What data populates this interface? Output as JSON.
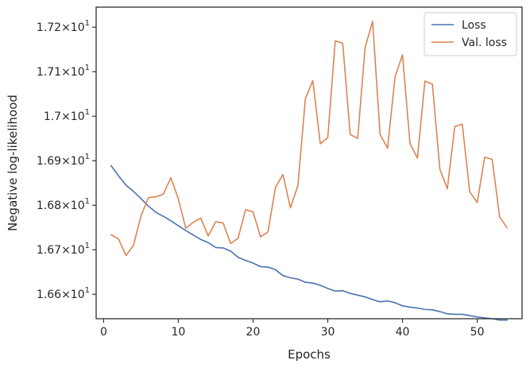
{
  "chart_data": {
    "type": "line",
    "xlabel": "Epochs",
    "ylabel": "Negative log-likelihood",
    "xlim": [
      -1,
      56
    ],
    "ylim": [
      16.545,
      17.245
    ],
    "x_ticks": [
      {
        "value": 0,
        "label": "0"
      },
      {
        "value": 10,
        "label": "10"
      },
      {
        "value": 20,
        "label": "20"
      },
      {
        "value": 30,
        "label": "30"
      },
      {
        "value": 40,
        "label": "40"
      },
      {
        "value": 50,
        "label": "50"
      }
    ],
    "y_ticks": [
      {
        "value": 16.6,
        "mant": "1.66",
        "exp": "1"
      },
      {
        "value": 16.7,
        "mant": "1.67",
        "exp": "1"
      },
      {
        "value": 16.8,
        "mant": "1.68",
        "exp": "1"
      },
      {
        "value": 16.9,
        "mant": "1.69",
        "exp": "1"
      },
      {
        "value": 17.0,
        "mant": "1.7",
        "exp": "1"
      },
      {
        "value": 17.1,
        "mant": "1.71",
        "exp": "1"
      },
      {
        "value": 17.2,
        "mant": "1.72",
        "exp": "1"
      }
    ],
    "x": [
      1,
      2,
      3,
      4,
      5,
      6,
      7,
      8,
      9,
      10,
      11,
      12,
      13,
      14,
      15,
      16,
      17,
      18,
      19,
      20,
      21,
      22,
      23,
      24,
      25,
      26,
      27,
      28,
      29,
      30,
      31,
      32,
      33,
      34,
      35,
      36,
      37,
      38,
      39,
      40,
      41,
      42,
      43,
      44,
      45,
      46,
      47,
      48,
      49,
      50,
      51,
      52,
      53,
      54
    ],
    "legend": {
      "position": "top-right"
    },
    "grid": false,
    "series": [
      {
        "name": "Loss",
        "color": "#4c72b0",
        "values": [
          16.889,
          16.866,
          16.845,
          16.831,
          16.815,
          16.798,
          16.784,
          16.775,
          16.765,
          16.754,
          16.743,
          16.733,
          16.723,
          16.716,
          16.705,
          16.704,
          16.697,
          16.683,
          16.676,
          16.67,
          16.662,
          16.661,
          16.655,
          16.642,
          16.637,
          16.634,
          16.627,
          16.625,
          16.62,
          16.613,
          16.607,
          16.608,
          16.602,
          16.598,
          16.594,
          16.588,
          16.583,
          16.585,
          16.581,
          16.574,
          16.571,
          16.569,
          16.566,
          16.565,
          16.561,
          16.556,
          16.555,
          16.555,
          16.552,
          16.549,
          16.547,
          16.545,
          16.542,
          16.542
        ]
      },
      {
        "name": "Val. loss",
        "color": "#dd8452",
        "values": [
          16.734,
          16.724,
          16.687,
          16.71,
          16.776,
          16.817,
          16.819,
          16.825,
          16.862,
          16.814,
          16.748,
          16.762,
          16.771,
          16.731,
          16.763,
          16.76,
          16.714,
          16.726,
          16.79,
          16.785,
          16.729,
          16.74,
          16.84,
          16.869,
          16.794,
          16.844,
          17.039,
          17.08,
          16.938,
          16.952,
          17.169,
          17.164,
          16.959,
          16.95,
          17.155,
          17.213,
          16.959,
          16.928,
          17.088,
          17.138,
          16.939,
          16.906,
          17.079,
          17.072,
          16.881,
          16.837,
          16.977,
          16.982,
          16.83,
          16.806,
          16.908,
          16.903,
          16.774,
          16.749
        ]
      }
    ]
  }
}
